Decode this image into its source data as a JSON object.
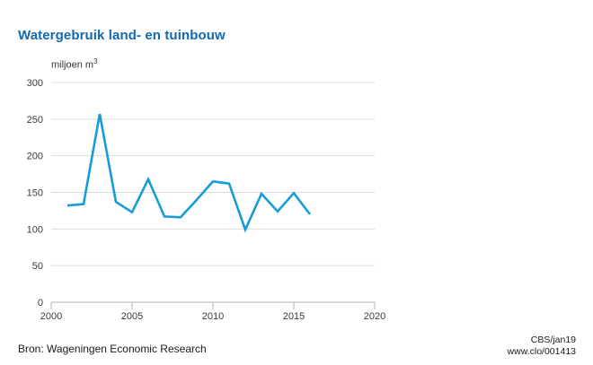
{
  "header": {
    "title": "Watergebruik land- en tuinbouw"
  },
  "chart_data": {
    "type": "line",
    "title": "Watergebruik land- en tuinbouw",
    "unit": "miljoen m³",
    "unit_base": "miljoen m",
    "unit_sup": "3",
    "x": [
      2001,
      2002,
      2003,
      2004,
      2005,
      2006,
      2007,
      2008,
      2009,
      2010,
      2011,
      2012,
      2013,
      2014,
      2015,
      2016
    ],
    "series": [
      {
        "name": "Watergebruik land- en tuinbouw",
        "values": [
          132,
          134,
          257,
          137,
          123,
          168,
          117,
          116,
          140,
          165,
          162,
          99,
          148,
          124,
          149,
          120
        ]
      }
    ],
    "xlabel": "",
    "ylabel": "miljoen m³",
    "xlim": [
      2000,
      2020
    ],
    "ylim": [
      0,
      300
    ],
    "xticks": [
      2000,
      2005,
      2010,
      2015,
      2020
    ],
    "yticks": [
      0,
      50,
      100,
      150,
      200,
      250,
      300
    ],
    "grid": "horizontal",
    "legend_position": "none",
    "colors": {
      "line": "#189cd8",
      "title": "#1268b1",
      "gridline": "#dcdcdc",
      "axis": "#b3b3b3",
      "tick_text": "#3a3a3a"
    }
  },
  "footer": {
    "source": "Bron: Wageningen Economic Research",
    "credit_org": "CBS/jan19",
    "credit_url": "www.clo/001413"
  }
}
